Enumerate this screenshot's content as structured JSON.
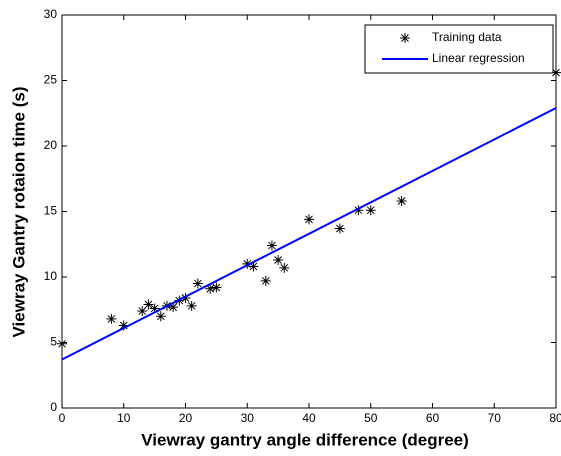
{
  "chart_data": {
    "type": "scatter",
    "xlabel": "Viewray gantry angle difference (degree)",
    "ylabel": "Viewray Gantry rotaion time (s)",
    "xlim": [
      0,
      80
    ],
    "ylim": [
      0,
      30
    ],
    "xticks": [
      0,
      10,
      20,
      30,
      40,
      50,
      60,
      70,
      80
    ],
    "yticks": [
      0,
      5,
      10,
      15,
      20,
      25,
      30
    ],
    "grid": false,
    "legend": "upper-right",
    "series": [
      {
        "name": "Training data",
        "color": "#000000",
        "type": "scatter",
        "x": [
          0,
          8,
          10,
          13,
          14,
          15,
          16,
          17,
          18,
          19,
          20,
          21,
          22,
          24,
          25,
          30,
          31,
          33,
          34,
          35,
          36,
          40,
          45,
          48,
          50,
          55,
          80
        ],
        "values": [
          4.9,
          6.8,
          6.3,
          7.4,
          7.9,
          7.6,
          7.0,
          7.8,
          7.7,
          8.2,
          8.4,
          7.8,
          9.5,
          9.1,
          9.2,
          11.0,
          10.8,
          9.7,
          12.4,
          11.3,
          10.7,
          14.4,
          13.7,
          15.1,
          15.1,
          15.8,
          25.6
        ]
      },
      {
        "name": "Linear regression",
        "color": "#0000ff",
        "type": "line",
        "x": [
          0,
          80
        ],
        "values": [
          3.7,
          22.9
        ]
      }
    ]
  }
}
